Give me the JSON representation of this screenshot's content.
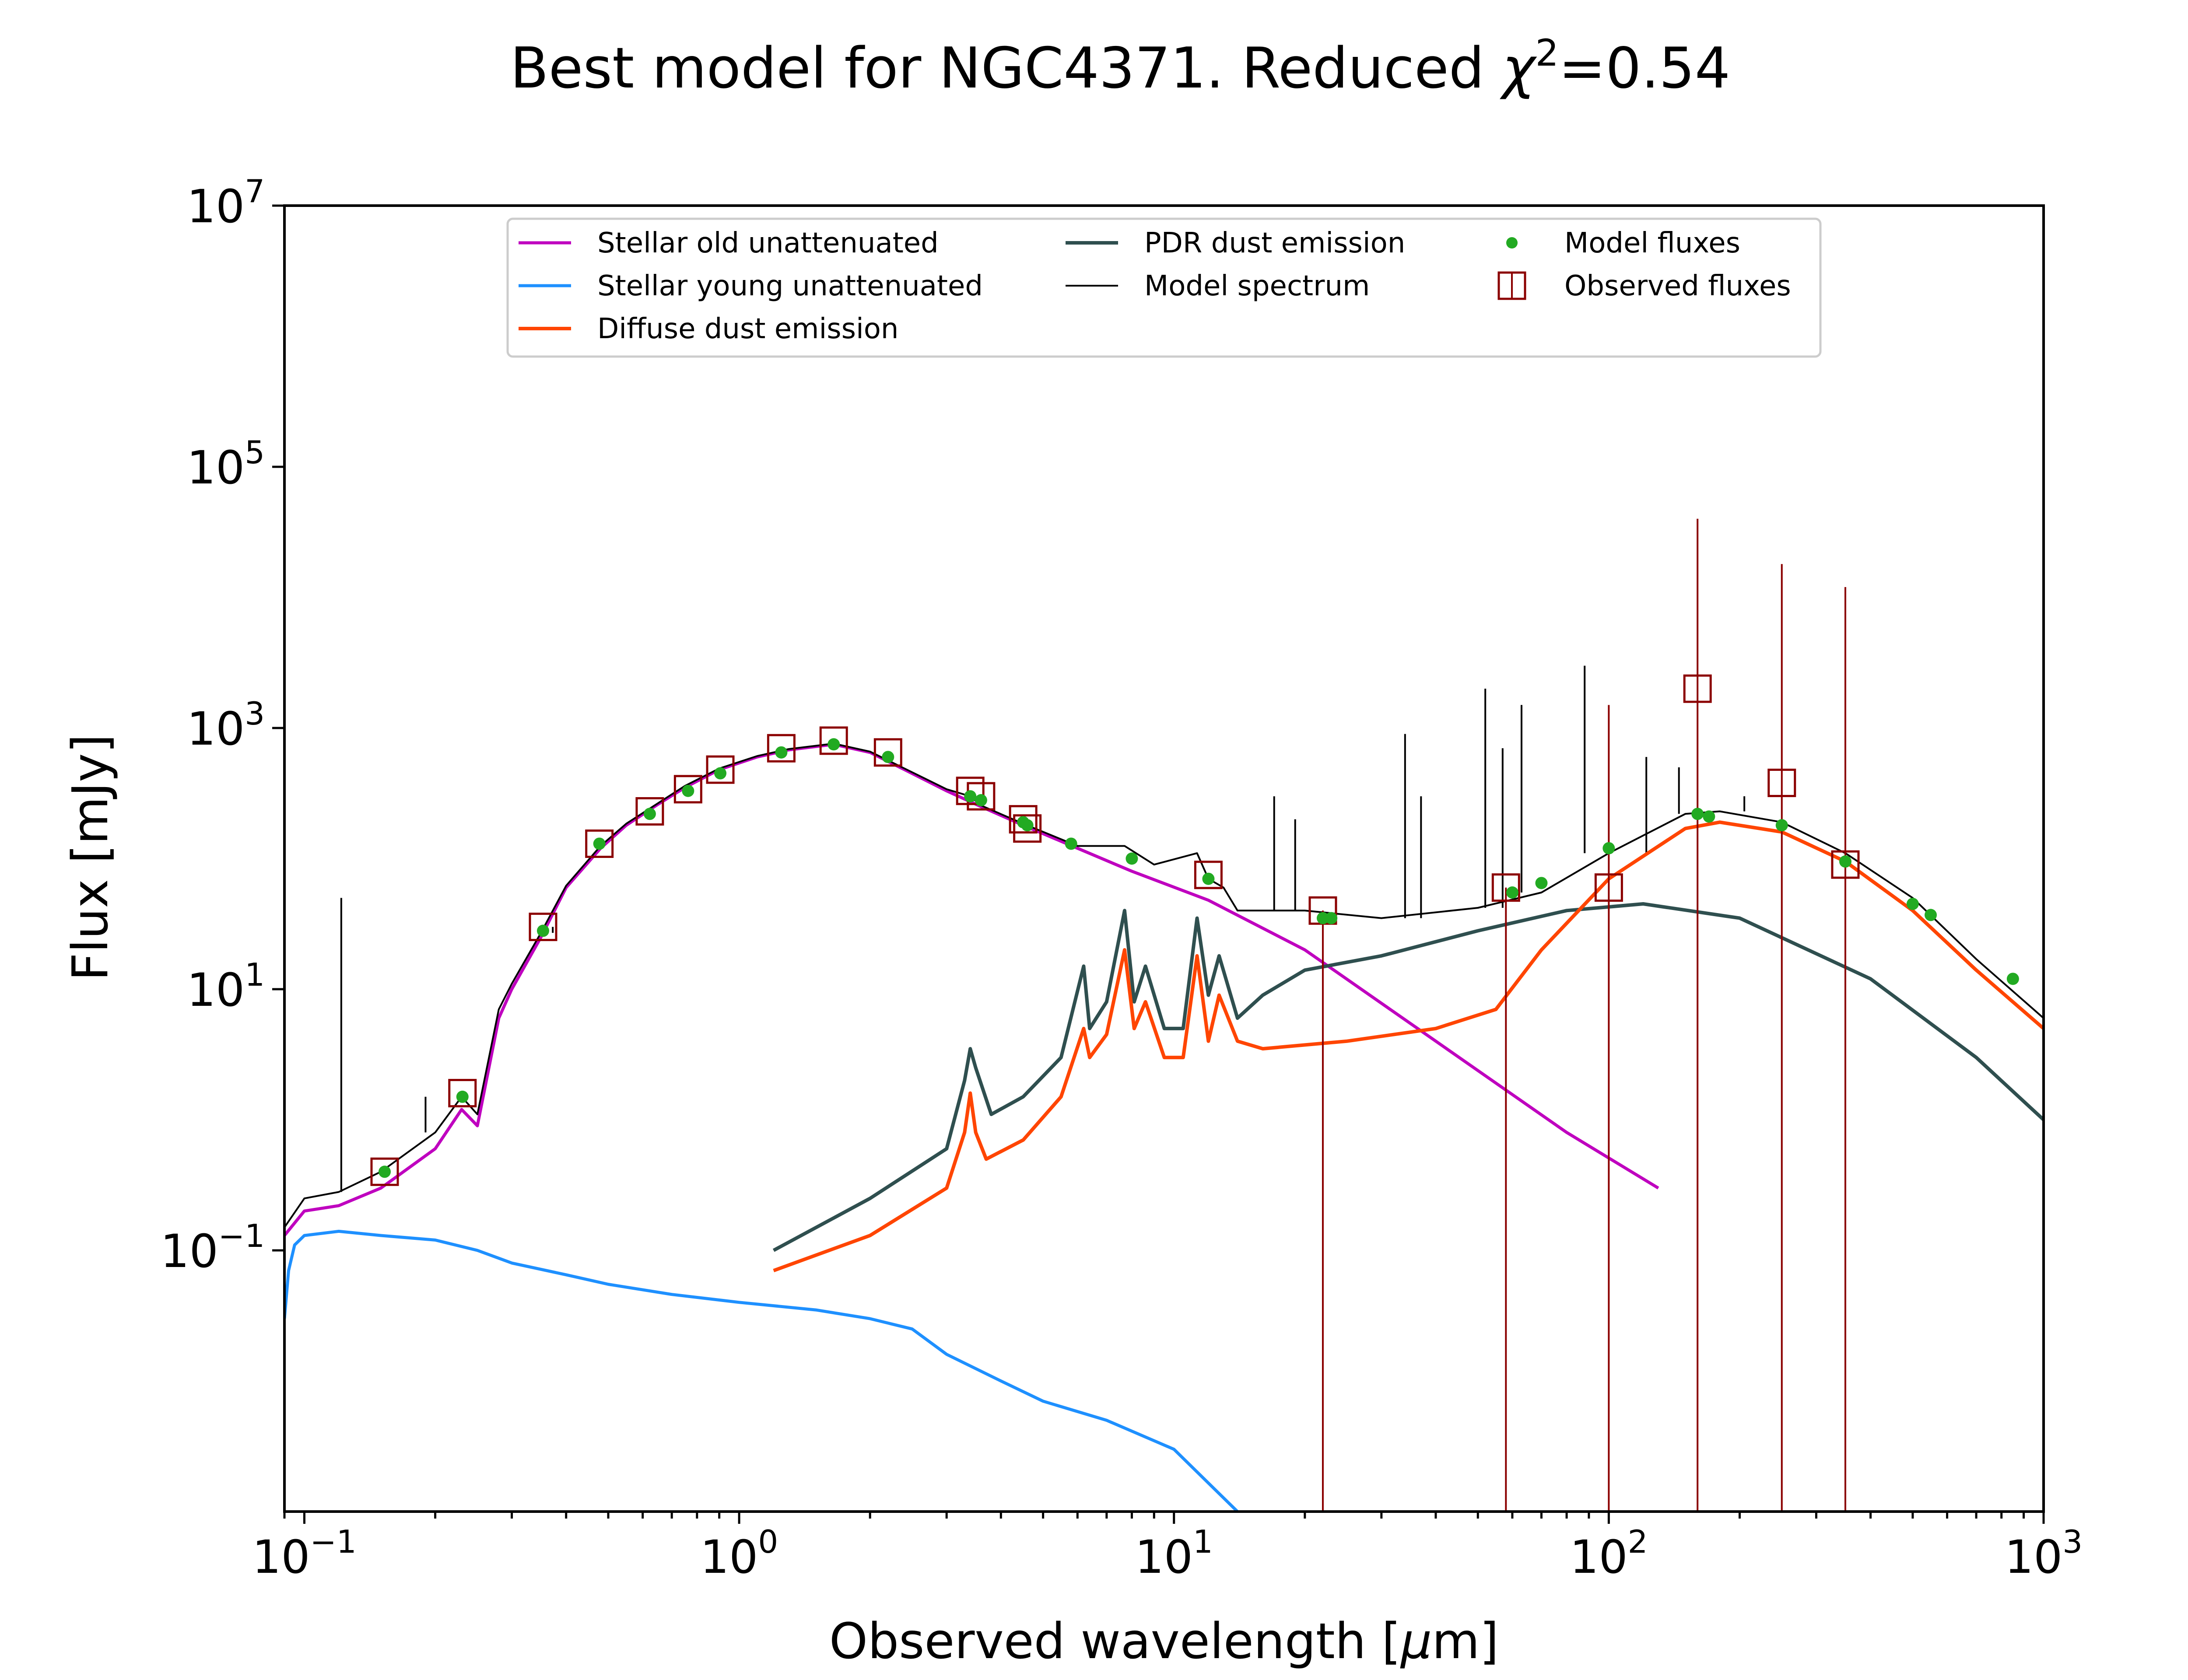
{
  "chart_data": {
    "type": "line",
    "title": {
      "main": "Best model for NGC4371. Reduced ",
      "chi": "χ",
      "sup": "2",
      "value": "=0.54"
    },
    "xlabel": {
      "pre": "Observed wavelength [",
      "mu": "μ",
      "post": "m]"
    },
    "ylabel": "Flux [mJy]",
    "x_scale": "log",
    "y_scale": "log",
    "xlim": [
      0.09,
      1000
    ],
    "ylim": [
      0.001,
      10000000
    ],
    "x_ticks": [
      {
        "base": "10",
        "exp": "−1",
        "value": 0.1
      },
      {
        "base": "10",
        "exp": "0",
        "value": 1
      },
      {
        "base": "10",
        "exp": "1",
        "value": 10
      },
      {
        "base": "10",
        "exp": "2",
        "value": 100
      },
      {
        "base": "10",
        "exp": "3",
        "value": 1000
      }
    ],
    "y_ticks": [
      {
        "base": "10",
        "exp": "−1",
        "value": 0.1
      },
      {
        "base": "10",
        "exp": "1",
        "value": 10
      },
      {
        "base": "10",
        "exp": "3",
        "value": 1000
      },
      {
        "base": "10",
        "exp": "5",
        "value": 100000
      },
      {
        "base": "10",
        "exp": "7",
        "value": 10000000
      }
    ],
    "legend_position": "top",
    "series": [
      {
        "name": "Stellar old unattenuated",
        "kind": "line",
        "color": "#bf00bf",
        "points": [
          [
            0.09,
            0.13
          ],
          [
            0.1,
            0.2
          ],
          [
            0.12,
            0.22
          ],
          [
            0.15,
            0.3
          ],
          [
            0.2,
            0.6
          ],
          [
            0.23,
            1.2
          ],
          [
            0.25,
            0.9
          ],
          [
            0.28,
            6
          ],
          [
            0.3,
            10
          ],
          [
            0.35,
            25
          ],
          [
            0.4,
            60
          ],
          [
            0.48,
            120
          ],
          [
            0.55,
            180
          ],
          [
            0.65,
            260
          ],
          [
            0.75,
            350
          ],
          [
            0.9,
            480
          ],
          [
            1.1,
            600
          ],
          [
            1.3,
            680
          ],
          [
            1.65,
            750
          ],
          [
            2.0,
            650
          ],
          [
            2.4,
            480
          ],
          [
            3.0,
            330
          ],
          [
            3.6,
            250
          ],
          [
            4.5,
            180
          ],
          [
            6,
            120
          ],
          [
            8,
            80
          ],
          [
            12,
            48
          ],
          [
            20,
            20
          ],
          [
            40,
            4
          ],
          [
            80,
            0.8
          ],
          [
            130,
            0.3
          ]
        ]
      },
      {
        "name": "Stellar young unattenuated",
        "kind": "line",
        "color": "#1e90ff",
        "points": [
          [
            0.09,
            0.03
          ],
          [
            0.092,
            0.07
          ],
          [
            0.095,
            0.11
          ],
          [
            0.1,
            0.13
          ],
          [
            0.12,
            0.14
          ],
          [
            0.15,
            0.13
          ],
          [
            0.2,
            0.12
          ],
          [
            0.25,
            0.1
          ],
          [
            0.3,
            0.08
          ],
          [
            0.4,
            0.065
          ],
          [
            0.5,
            0.055
          ],
          [
            0.7,
            0.046
          ],
          [
            1.0,
            0.04
          ],
          [
            1.5,
            0.035
          ],
          [
            2.0,
            0.03
          ],
          [
            2.5,
            0.025
          ],
          [
            3.0,
            0.016
          ],
          [
            4.0,
            0.01
          ],
          [
            5.0,
            0.007
          ],
          [
            7,
            0.005
          ],
          [
            10,
            0.003
          ],
          [
            14,
            0.001
          ]
        ]
      },
      {
        "name": "Diffuse dust emission",
        "kind": "line",
        "color": "#ff4500",
        "points": [
          [
            1.2,
            0.07
          ],
          [
            2,
            0.13
          ],
          [
            3,
            0.3
          ],
          [
            3.3,
            0.8
          ],
          [
            3.4,
            1.6
          ],
          [
            3.5,
            0.8
          ],
          [
            3.7,
            0.5
          ],
          [
            4.5,
            0.7
          ],
          [
            5.5,
            1.5
          ],
          [
            6.2,
            5
          ],
          [
            6.4,
            3
          ],
          [
            7,
            4.5
          ],
          [
            7.7,
            20
          ],
          [
            8.1,
            5
          ],
          [
            8.6,
            8
          ],
          [
            9.5,
            3
          ],
          [
            10.5,
            3
          ],
          [
            11.3,
            18
          ],
          [
            12,
            4
          ],
          [
            12.7,
            9
          ],
          [
            14,
            4
          ],
          [
            16,
            3.5
          ],
          [
            25,
            4
          ],
          [
            40,
            5
          ],
          [
            55,
            7
          ],
          [
            70,
            20
          ],
          [
            100,
            70
          ],
          [
            150,
            170
          ],
          [
            180,
            190
          ],
          [
            250,
            160
          ],
          [
            350,
            95
          ],
          [
            500,
            40
          ],
          [
            700,
            14
          ],
          [
            1000,
            5
          ]
        ]
      },
      {
        "name": "PDR dust emission",
        "kind": "line",
        "color": "#2f4f4f",
        "points": [
          [
            1.2,
            0.1
          ],
          [
            2,
            0.25
          ],
          [
            3,
            0.6
          ],
          [
            3.3,
            2
          ],
          [
            3.4,
            3.5
          ],
          [
            3.5,
            2.5
          ],
          [
            3.8,
            1.1
          ],
          [
            4.5,
            1.5
          ],
          [
            5.5,
            3
          ],
          [
            6.2,
            15
          ],
          [
            6.4,
            5
          ],
          [
            7,
            8
          ],
          [
            7.7,
            40
          ],
          [
            8.1,
            8
          ],
          [
            8.6,
            15
          ],
          [
            9.5,
            5
          ],
          [
            10.5,
            5
          ],
          [
            11.3,
            35
          ],
          [
            12,
            9
          ],
          [
            12.7,
            18
          ],
          [
            14,
            6
          ],
          [
            16,
            9
          ],
          [
            20,
            14
          ],
          [
            30,
            18
          ],
          [
            50,
            28
          ],
          [
            80,
            40
          ],
          [
            120,
            45
          ],
          [
            200,
            35
          ],
          [
            400,
            12
          ],
          [
            700,
            3
          ],
          [
            1000,
            1
          ]
        ]
      },
      {
        "name": "Model spectrum",
        "kind": "line",
        "color": "#000000",
        "points": [
          [
            0.09,
            0.15
          ],
          [
            0.1,
            0.25
          ],
          [
            0.12,
            0.28
          ],
          [
            0.15,
            0.4
          ],
          [
            0.2,
            0.8
          ],
          [
            0.23,
            1.5
          ],
          [
            0.25,
            1.1
          ],
          [
            0.28,
            7
          ],
          [
            0.3,
            11
          ],
          [
            0.35,
            27
          ],
          [
            0.4,
            62
          ],
          [
            0.48,
            125
          ],
          [
            0.55,
            185
          ],
          [
            0.65,
            265
          ],
          [
            0.75,
            360
          ],
          [
            0.9,
            490
          ],
          [
            1.1,
            610
          ],
          [
            1.3,
            690
          ],
          [
            1.65,
            760
          ],
          [
            2.0,
            660
          ],
          [
            2.4,
            490
          ],
          [
            3.0,
            340
          ],
          [
            3.4,
            300
          ],
          [
            3.6,
            255
          ],
          [
            4.5,
            185
          ],
          [
            6,
            125
          ],
          [
            7.7,
            125
          ],
          [
            9,
            90
          ],
          [
            11.3,
            110
          ],
          [
            12,
            70
          ],
          [
            13,
            60
          ],
          [
            14,
            40
          ],
          [
            20,
            40
          ],
          [
            30,
            35
          ],
          [
            50,
            42
          ],
          [
            70,
            55
          ],
          [
            100,
            110
          ],
          [
            150,
            220
          ],
          [
            180,
            230
          ],
          [
            250,
            190
          ],
          [
            350,
            110
          ],
          [
            500,
            50
          ],
          [
            700,
            17
          ],
          [
            1000,
            6
          ]
        ],
        "lines": [
          [
            0.1216,
            50
          ],
          [
            0.19,
            1.5
          ],
          [
            0.3727,
            30
          ],
          [
            17,
            300
          ],
          [
            19,
            200
          ],
          [
            34,
            900
          ],
          [
            37,
            300
          ],
          [
            52,
            2000
          ],
          [
            57,
            700
          ],
          [
            63,
            1500
          ],
          [
            88,
            3000
          ],
          [
            122,
            600
          ],
          [
            145,
            500
          ],
          [
            205,
            300
          ]
        ]
      },
      {
        "name": "Model fluxes",
        "kind": "scatter",
        "color": "#22aa22",
        "points": [
          [
            0.153,
            0.4
          ],
          [
            0.231,
            1.5
          ],
          [
            0.354,
            28
          ],
          [
            0.477,
            130
          ],
          [
            0.623,
            220
          ],
          [
            0.763,
            330
          ],
          [
            0.905,
            450
          ],
          [
            1.25,
            650
          ],
          [
            1.65,
            750
          ],
          [
            2.2,
            600
          ],
          [
            3.4,
            300
          ],
          [
            3.6,
            280
          ],
          [
            4.5,
            190
          ],
          [
            4.6,
            180
          ],
          [
            5.8,
            130
          ],
          [
            8.0,
            100
          ],
          [
            12,
            70
          ],
          [
            22,
            35
          ],
          [
            23,
            35
          ],
          [
            60,
            55
          ],
          [
            70,
            65
          ],
          [
            100,
            120
          ],
          [
            160,
            220
          ],
          [
            170,
            210
          ],
          [
            250,
            180
          ],
          [
            350,
            95
          ],
          [
            500,
            45
          ],
          [
            550,
            37
          ],
          [
            850,
            12
          ]
        ]
      },
      {
        "name": "Observed fluxes",
        "kind": "scatter",
        "color": "#8b0000",
        "points": [
          [
            0.153,
            0.4
          ],
          [
            0.231,
            1.6
          ],
          [
            0.354,
            30
          ],
          [
            0.477,
            130
          ],
          [
            0.623,
            230
          ],
          [
            0.763,
            340
          ],
          [
            0.905,
            480
          ],
          [
            1.25,
            700
          ],
          [
            1.65,
            800
          ],
          [
            2.2,
            650
          ],
          [
            3.4,
            330
          ],
          [
            3.6,
            300
          ],
          [
            4.5,
            200
          ],
          [
            4.6,
            170
          ],
          [
            12,
            75
          ],
          [
            22,
            40
          ],
          [
            58,
            60
          ],
          [
            100,
            60
          ],
          [
            160,
            2000
          ],
          [
            250,
            380
          ],
          [
            350,
            90
          ]
        ],
        "error_bars": [
          {
            "x": 22,
            "low": 0.001,
            "high": 40
          },
          {
            "x": 58,
            "low": 0.001,
            "high": 60
          },
          {
            "x": 100,
            "low": 0.001,
            "high": 1500
          },
          {
            "x": 160,
            "low": 0.001,
            "high": 40000
          },
          {
            "x": 250,
            "low": 0.001,
            "high": 18000
          },
          {
            "x": 350,
            "low": 0.001,
            "high": 12000
          }
        ]
      }
    ]
  }
}
